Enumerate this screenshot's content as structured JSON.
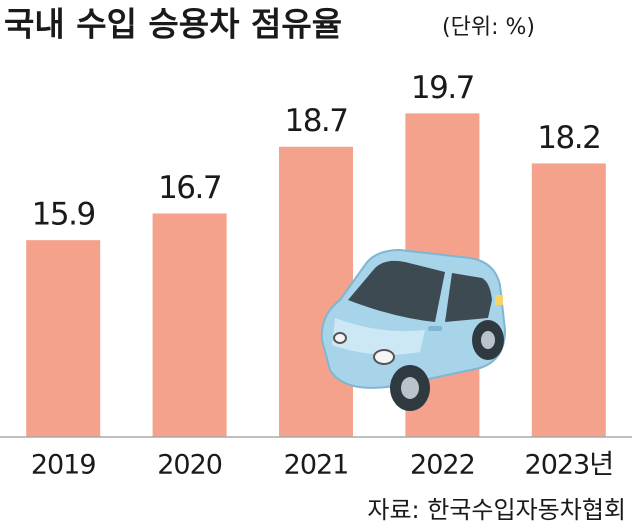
{
  "chart_data": {
    "type": "bar",
    "title": "국내 수입 승용차 점유율",
    "subtitle": "(단위: %)",
    "categories": [
      "2019",
      "2020",
      "2021",
      "2022",
      "2023년"
    ],
    "values": [
      15.9,
      16.7,
      18.7,
      19.7,
      18.2
    ],
    "color": "#f4a28c",
    "ylim": [
      10,
      21
    ],
    "source": "자료: 한국수입자동차협회"
  }
}
